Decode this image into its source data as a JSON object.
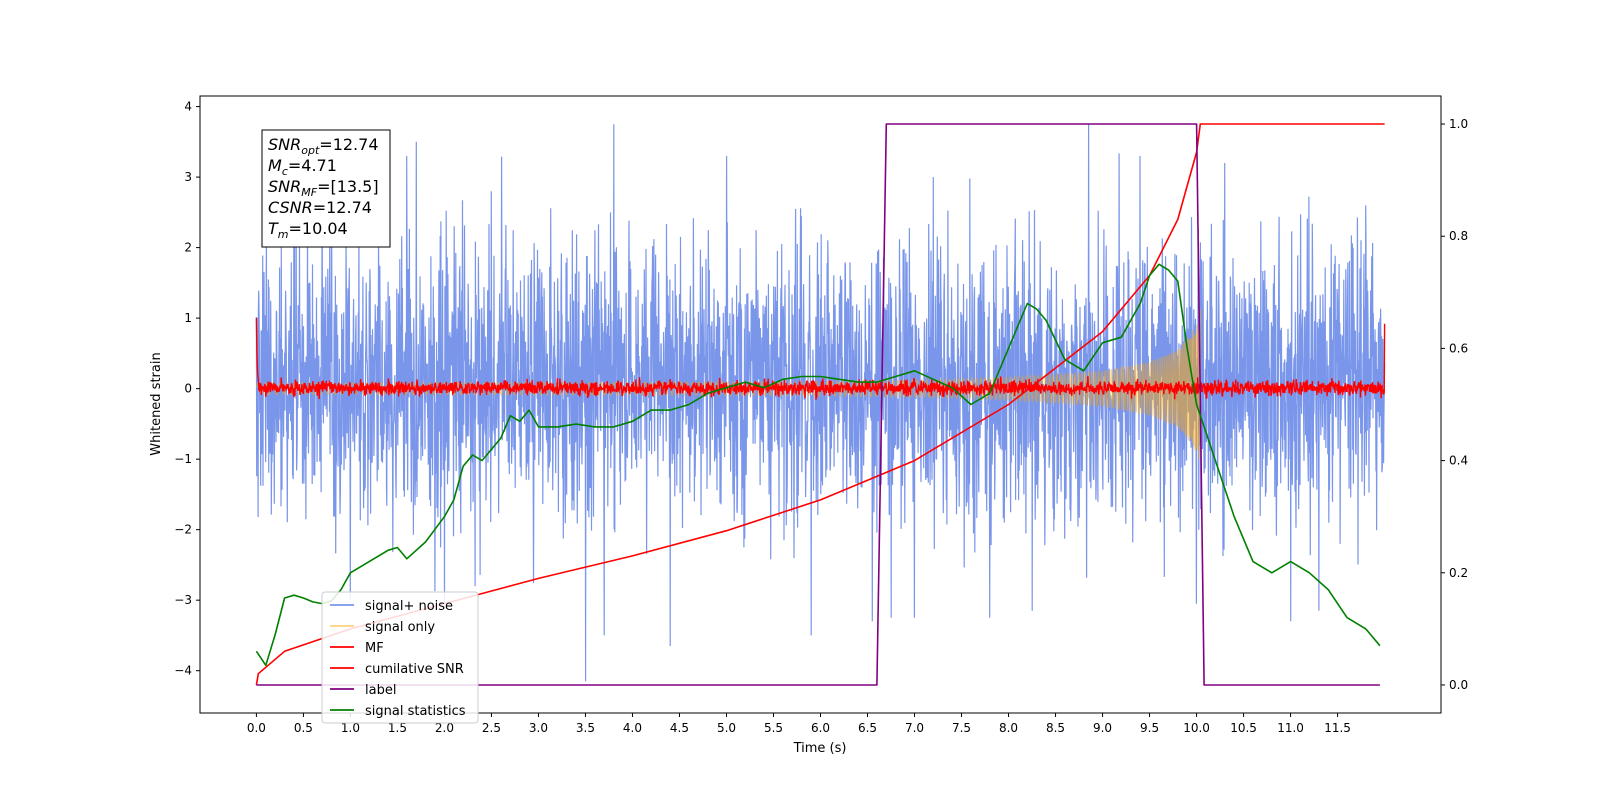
{
  "chart_data": {
    "type": "line",
    "title": "",
    "xlabel": "Time (s)",
    "ylabel": "Whitened strain",
    "y2label": "",
    "xlim": [
      -0.6,
      12.6
    ],
    "ylim": [
      -4.6,
      4.15
    ],
    "y2lim": [
      -0.05,
      1.05
    ],
    "x_ticks": [
      0.0,
      0.5,
      1.0,
      1.5,
      2.0,
      2.5,
      3.0,
      3.5,
      4.0,
      4.5,
      5.0,
      5.5,
      6.0,
      6.5,
      7.0,
      7.5,
      8.0,
      8.5,
      9.0,
      9.5,
      10.0,
      10.5,
      11.0,
      11.5
    ],
    "x_tick_labels": [
      "0.0",
      "0.5",
      "1.0",
      "1.5",
      "2.0",
      "2.5",
      "3.0",
      "3.5",
      "4.0",
      "4.5",
      "5.0",
      "5.5",
      "6.0",
      "6.5",
      "7.0",
      "7.5",
      "8.0",
      "8.5",
      "9.0",
      "9.5",
      "10.0",
      "10.5",
      "11.0",
      "11.5"
    ],
    "y_ticks": [
      -4,
      -3,
      -2,
      -1,
      0,
      1,
      2,
      3,
      4
    ],
    "y_tick_labels": [
      "−4",
      "−3",
      "−2",
      "−1",
      "0",
      "1",
      "2",
      "3",
      "4"
    ],
    "y2_ticks": [
      0.0,
      0.2,
      0.4,
      0.6,
      0.8,
      1.0
    ],
    "y2_tick_labels": [
      "0.0",
      "0.2",
      "0.4",
      "0.6",
      "0.8",
      "1.0"
    ],
    "grid": false,
    "legend_position": "bottom-left",
    "legend": [
      "signal+ noise",
      "signal only",
      "MF",
      "cumilative SNR",
      "label",
      "signal statistics"
    ],
    "annotation": {
      "lines": [
        {
          "base": "SNR",
          "sub": "opt",
          "value": "=12.74"
        },
        {
          "base": "M",
          "sub": "c",
          "value": "=4.71"
        },
        {
          "base": "SNR",
          "sub": "MF",
          "value": "=[13.5]"
        },
        {
          "base": "CSNR",
          "sub": "",
          "value": "=12.74"
        },
        {
          "base": "T",
          "sub": "m",
          "value": "=10.04"
        }
      ]
    },
    "series": [
      {
        "name": "signal+ noise",
        "axis": "left",
        "color": "#4169E1",
        "kind": "noise",
        "x_range": [
          0.0,
          12.0
        ],
        "typical_band": [
          -1.7,
          1.9
        ],
        "spikes": [
          {
            "x": 0.4,
            "y": 3.0
          },
          {
            "x": 1.0,
            "y": 3.3
          },
          {
            "x": 1.6,
            "y": 3.3
          },
          {
            "x": 1.7,
            "y": 3.5
          },
          {
            "x": 2.0,
            "y": 2.9
          },
          {
            "x": 2.5,
            "y": 2.8
          },
          {
            "x": 3.8,
            "y": 3.75
          },
          {
            "x": 5.0,
            "y": 3.3
          },
          {
            "x": 5.9,
            "y": 3.4
          },
          {
            "x": 7.2,
            "y": 3.0
          },
          {
            "x": 7.8,
            "y": 3.3
          },
          {
            "x": 8.85,
            "y": 3.75
          },
          {
            "x": 9.4,
            "y": 3.3
          },
          {
            "x": 10.3,
            "y": 3.2
          },
          {
            "x": 11.8,
            "y": 2.6
          },
          {
            "x": 1.0,
            "y": -3.0
          },
          {
            "x": 2.0,
            "y": -3.1
          },
          {
            "x": 3.5,
            "y": -4.15
          },
          {
            "x": 3.7,
            "y": -3.5
          },
          {
            "x": 4.4,
            "y": -3.65
          },
          {
            "x": 5.9,
            "y": -3.5
          },
          {
            "x": 6.55,
            "y": -3.3
          },
          {
            "x": 6.75,
            "y": -3.25
          },
          {
            "x": 7.0,
            "y": -3.25
          },
          {
            "x": 7.8,
            "y": -3.25
          },
          {
            "x": 8.25,
            "y": -3.15
          },
          {
            "x": 10.0,
            "y": -3.05
          },
          {
            "x": 11.0,
            "y": -3.3
          },
          {
            "x": 11.3,
            "y": -3.15
          }
        ]
      },
      {
        "name": "signal only",
        "axis": "left",
        "color": "#FFA500",
        "kind": "chirp",
        "x_range": [
          0.0,
          10.04
        ],
        "envelope": {
          "x": [
            0.0,
            6.0,
            7.0,
            8.0,
            9.0,
            9.5,
            9.8,
            10.0,
            10.04
          ],
          "amp": [
            0.08,
            0.1,
            0.12,
            0.16,
            0.25,
            0.38,
            0.55,
            0.9,
            1.2
          ]
        }
      },
      {
        "name": "MF",
        "axis": "left",
        "color": "#FF0000",
        "kind": "noise",
        "x_range": [
          0.0,
          12.0
        ],
        "typical_band": [
          -0.1,
          0.12
        ],
        "edges": {
          "start_y": 1.0,
          "end_y": 0.92
        }
      },
      {
        "name": "cumilative SNR",
        "axis": "right",
        "color": "#FF0000",
        "kind": "line",
        "x": [
          0.0,
          0.02,
          0.3,
          1.0,
          2.0,
          3.0,
          4.0,
          5.0,
          6.0,
          7.0,
          8.0,
          9.0,
          9.5,
          9.8,
          10.0,
          10.04,
          12.0
        ],
        "y": [
          0.0,
          0.02,
          0.06,
          0.1,
          0.145,
          0.19,
          0.23,
          0.275,
          0.33,
          0.4,
          0.5,
          0.63,
          0.73,
          0.83,
          0.95,
          1.0,
          1.0
        ]
      },
      {
        "name": "label",
        "axis": "right",
        "color": "#800080",
        "kind": "line",
        "x": [
          0.0,
          6.6,
          6.7,
          10.0,
          10.08,
          11.95
        ],
        "y": [
          0.0,
          0.0,
          1.0,
          1.0,
          0.0,
          0.0
        ]
      },
      {
        "name": "signal statistics",
        "axis": "right",
        "color": "#008000",
        "kind": "line",
        "x": [
          0.0,
          0.1,
          0.2,
          0.3,
          0.4,
          0.5,
          0.6,
          0.7,
          0.8,
          0.9,
          1.0,
          1.2,
          1.4,
          1.5,
          1.6,
          1.8,
          2.0,
          2.1,
          2.2,
          2.3,
          2.4,
          2.5,
          2.6,
          2.7,
          2.8,
          2.9,
          3.0,
          3.2,
          3.4,
          3.6,
          3.8,
          4.0,
          4.2,
          4.4,
          4.6,
          4.8,
          5.0,
          5.2,
          5.4,
          5.6,
          5.8,
          6.0,
          6.2,
          6.4,
          6.6,
          6.8,
          7.0,
          7.2,
          7.4,
          7.6,
          7.8,
          8.0,
          8.2,
          8.3,
          8.4,
          8.6,
          8.8,
          9.0,
          9.2,
          9.4,
          9.5,
          9.6,
          9.7,
          9.8,
          9.9,
          10.0,
          10.1,
          10.2,
          10.4,
          10.6,
          10.8,
          11.0,
          11.2,
          11.4,
          11.6,
          11.8,
          11.95
        ],
        "y": [
          0.06,
          0.035,
          0.09,
          0.155,
          0.16,
          0.155,
          0.148,
          0.145,
          0.15,
          0.17,
          0.2,
          0.22,
          0.24,
          0.245,
          0.225,
          0.255,
          0.3,
          0.33,
          0.39,
          0.41,
          0.4,
          0.42,
          0.44,
          0.48,
          0.47,
          0.49,
          0.46,
          0.46,
          0.465,
          0.46,
          0.46,
          0.47,
          0.49,
          0.49,
          0.5,
          0.52,
          0.53,
          0.54,
          0.53,
          0.545,
          0.55,
          0.55,
          0.545,
          0.54,
          0.54,
          0.55,
          0.56,
          0.545,
          0.53,
          0.5,
          0.52,
          0.6,
          0.68,
          0.67,
          0.65,
          0.58,
          0.56,
          0.61,
          0.62,
          0.68,
          0.73,
          0.75,
          0.74,
          0.72,
          0.6,
          0.5,
          0.45,
          0.4,
          0.3,
          0.22,
          0.2,
          0.22,
          0.2,
          0.17,
          0.12,
          0.1,
          0.07
        ]
      }
    ]
  }
}
